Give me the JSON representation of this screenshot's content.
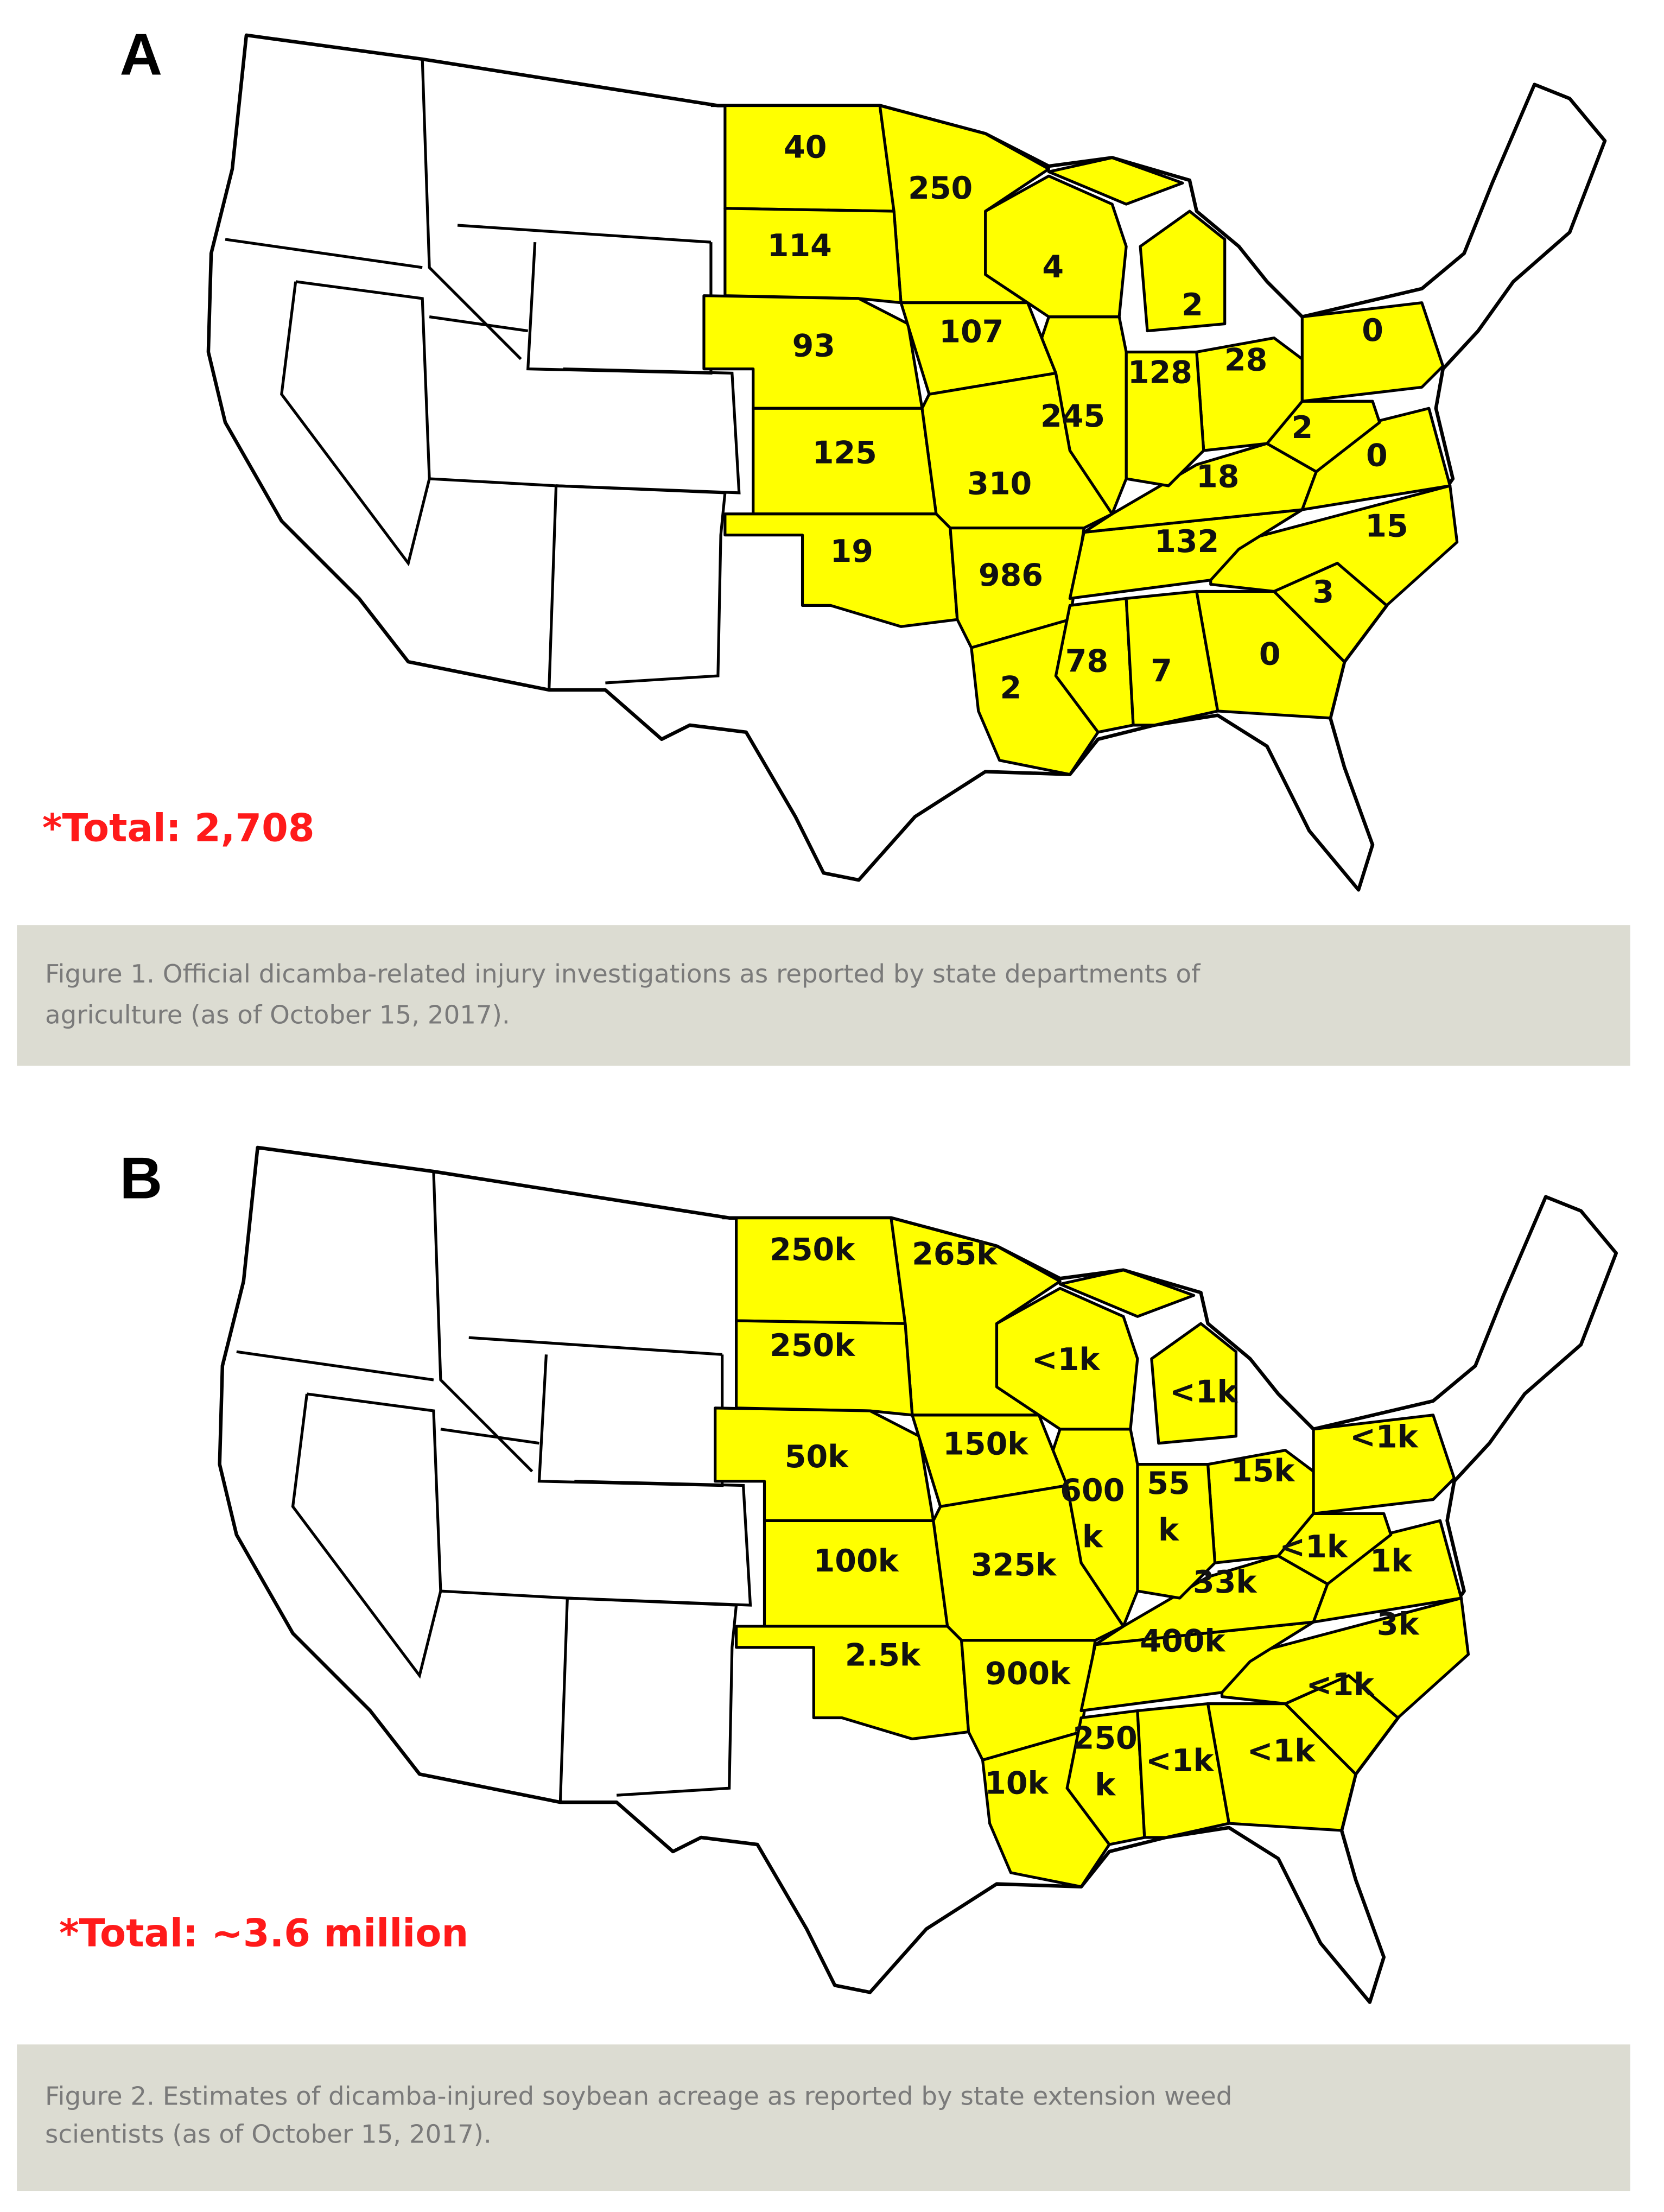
{
  "panels": [
    {
      "letter": "A",
      "labels": [
        40,
        250,
        114,
        4,
        2,
        93,
        107,
        128,
        28,
        0,
        245,
        125,
        310,
        2,
        18,
        0,
        132,
        15,
        19,
        986,
        3,
        78,
        7,
        0,
        2
      ],
      "total": "*Total: 2,708",
      "caption": [
        "Figure 1. Official dicamba-related injury investigations as reported by state departments of",
        "agriculture (as of October 15, 2017)."
      ]
    },
    {
      "letter": "B",
      "labels": [
        [
          "250k"
        ],
        [
          "265k"
        ],
        [
          "250k"
        ],
        [
          "<1k"
        ],
        [
          "<1k"
        ],
        [
          "50k"
        ],
        [
          "150k"
        ],
        [
          "600",
          "k"
        ],
        [
          "55",
          "k"
        ],
        [
          "15k"
        ],
        [
          "<1k"
        ],
        [
          "100k"
        ],
        [
          "325k"
        ],
        [
          "<1k"
        ],
        [
          "33k"
        ],
        [
          "1k"
        ],
        [
          "400k"
        ],
        [
          "3k"
        ],
        [
          "2.5k"
        ],
        [
          "900k"
        ],
        [
          "<1k"
        ],
        [
          "250",
          "k"
        ],
        [
          "<1k"
        ],
        [
          "<1k"
        ],
        [
          "10k"
        ]
      ],
      "total": "*Total: ~3.6 million",
      "caption": [
        "Figure 2. Estimates of dicamba-injured soybean acreage as reported by state extension weed",
        "scientists (as of October 15, 2017)."
      ]
    }
  ]
}
